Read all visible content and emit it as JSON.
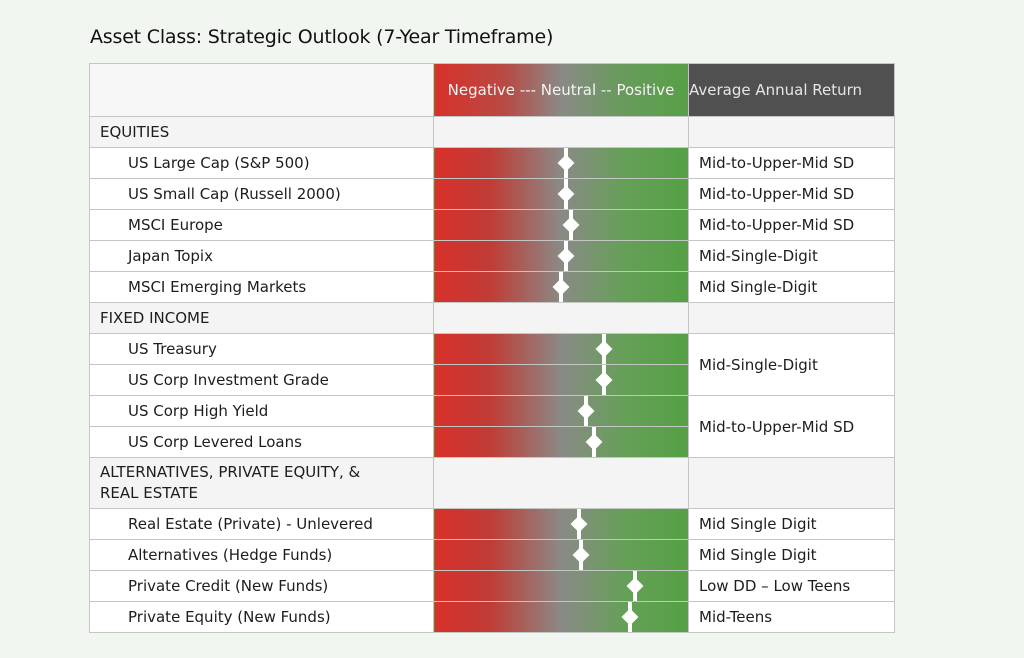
{
  "title": "Asset Class: Strategic Outlook (7-Year Timeframe)",
  "header": {
    "scale_label": "Negative --- Neutral -- Positive",
    "return_label": "Average Annual Return"
  },
  "sections": {
    "equities": "EQUITIES",
    "fixed_income": "FIXED INCOME",
    "alternatives": "ALTERNATIVES, PRIVATE EQUITY, & REAL ESTATE"
  },
  "rows": [
    {
      "name": "US Large Cap (S&P 500)",
      "outlook": 0.52,
      "return": "Mid-to-Upper-Mid SD"
    },
    {
      "name": "US Small Cap (Russell 2000)",
      "outlook": 0.52,
      "return": "Mid-to-Upper-Mid SD"
    },
    {
      "name": "MSCI Europe",
      "outlook": 0.54,
      "return": "Mid-to-Upper-Mid SD"
    },
    {
      "name": "Japan Topix",
      "outlook": 0.52,
      "return": "Mid-Single-Digit"
    },
    {
      "name": "MSCI Emerging Markets",
      "outlook": 0.5,
      "return": "Mid Single-Digit"
    },
    {
      "name": "US Treasury",
      "outlook": 0.67,
      "return": "Mid-Single-Digit"
    },
    {
      "name": "US Corp Investment Grade",
      "outlook": 0.67
    },
    {
      "name": "US Corp High Yield",
      "outlook": 0.6,
      "return": "Mid-to-Upper-Mid SD"
    },
    {
      "name": "US Corp Levered Loans",
      "outlook": 0.63
    },
    {
      "name": "Real Estate (Private) - Unlevered",
      "outlook": 0.57,
      "return": "Mid Single Digit"
    },
    {
      "name": "Alternatives (Hedge Funds)",
      "outlook": 0.58,
      "return": "Mid Single Digit"
    },
    {
      "name": "Private Credit (New Funds)",
      "outlook": 0.79,
      "return": "Low DD – Low Teens"
    },
    {
      "name": "Private Equity (New Funds)",
      "outlook": 0.77,
      "return": "Mid-Teens"
    }
  ],
  "colors": {
    "negative": "#d8312a",
    "neutral": "#8a8a86",
    "positive": "#55a045",
    "marker": "#ffffff",
    "return_header": "#505050"
  }
}
